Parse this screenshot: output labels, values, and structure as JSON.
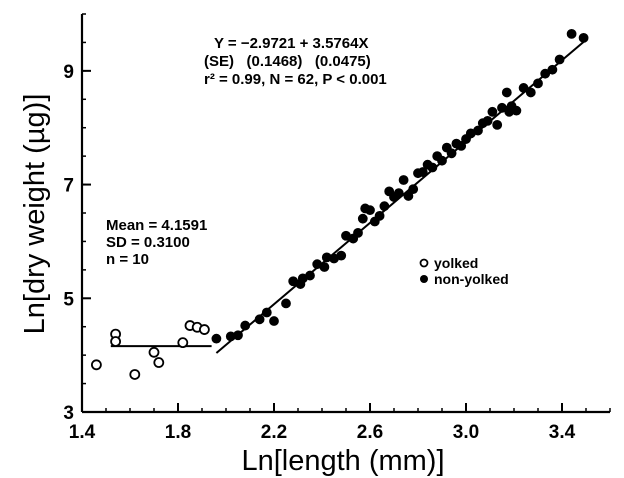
{
  "chart_data": {
    "type": "scatter",
    "xlabel": "Ln[length (mm)]",
    "ylabel": "Ln[dry weight (µg)]",
    "xlim": [
      1.4,
      3.6
    ],
    "ylim": [
      3,
      10
    ],
    "x_ticks": [
      {
        "value": 1.4,
        "label": "1.4"
      },
      {
        "value": 1.8,
        "label": "1.8"
      },
      {
        "value": 2.2,
        "label": "2.2"
      },
      {
        "value": 2.6,
        "label": "2.6"
      },
      {
        "value": 3.0,
        "label": "3.0"
      },
      {
        "value": 3.4,
        "label": "3.4"
      }
    ],
    "y_ticks": [
      {
        "value": 3,
        "label": "3"
      },
      {
        "value": 5,
        "label": "5"
      },
      {
        "value": 7,
        "label": "7"
      },
      {
        "value": 9,
        "label": "9"
      }
    ],
    "grid": false,
    "legend": {
      "placement": "center-right",
      "entries": [
        {
          "label": "yolked",
          "marker": "open-circle"
        },
        {
          "label": "non-yolked",
          "marker": "filled-circle"
        }
      ]
    },
    "annotations": {
      "regression": [
        "Y = −2.9721 + 3.5764X",
        "(SE)   (0.1468)   (0.0475)",
        "r² = 0.99, N = 62, P < 0.001"
      ],
      "summary": [
        "Mean = 4.1591",
        "SD = 0.3100",
        "n = 10"
      ]
    },
    "fit_lines": [
      {
        "name": "regression",
        "intercept": -2.9721,
        "slope": 3.5764,
        "x_range": [
          1.96,
          3.5
        ]
      },
      {
        "name": "mean",
        "y": 4.1591,
        "x_range": [
          1.52,
          1.94
        ]
      }
    ],
    "series": [
      {
        "name": "yolked",
        "marker": "open-circle",
        "points": [
          [
            1.46,
            3.83
          ],
          [
            1.54,
            4.37
          ],
          [
            1.54,
            4.24
          ],
          [
            1.62,
            3.66
          ],
          [
            1.7,
            4.05
          ],
          [
            1.72,
            3.87
          ],
          [
            1.82,
            4.22
          ],
          [
            1.85,
            4.52
          ],
          [
            1.88,
            4.49
          ],
          [
            1.91,
            4.45
          ]
        ]
      },
      {
        "name": "non-yolked",
        "marker": "filled-circle",
        "points": [
          [
            1.96,
            4.29
          ],
          [
            2.02,
            4.33
          ],
          [
            2.05,
            4.35
          ],
          [
            2.08,
            4.52
          ],
          [
            2.14,
            4.63
          ],
          [
            2.17,
            4.75
          ],
          [
            2.2,
            4.6
          ],
          [
            2.25,
            4.91
          ],
          [
            2.28,
            5.3
          ],
          [
            2.32,
            5.35
          ],
          [
            2.35,
            5.4
          ],
          [
            2.38,
            5.6
          ],
          [
            2.42,
            5.72
          ],
          [
            2.45,
            5.7
          ],
          [
            2.48,
            5.75
          ],
          [
            2.5,
            6.1
          ],
          [
            2.53,
            6.05
          ],
          [
            2.55,
            6.15
          ],
          [
            2.58,
            6.58
          ],
          [
            2.6,
            6.55
          ],
          [
            2.62,
            6.35
          ],
          [
            2.64,
            6.45
          ],
          [
            2.66,
            6.62
          ],
          [
            2.68,
            6.88
          ],
          [
            2.7,
            6.78
          ],
          [
            2.72,
            6.85
          ],
          [
            2.74,
            7.08
          ],
          [
            2.76,
            6.8
          ],
          [
            2.78,
            6.92
          ],
          [
            2.8,
            7.2
          ],
          [
            2.82,
            7.22
          ],
          [
            2.84,
            7.35
          ],
          [
            2.86,
            7.3
          ],
          [
            2.88,
            7.5
          ],
          [
            2.9,
            7.42
          ],
          [
            2.92,
            7.65
          ],
          [
            2.94,
            7.55
          ],
          [
            2.96,
            7.72
          ],
          [
            2.98,
            7.68
          ],
          [
            3.0,
            7.8
          ],
          [
            3.02,
            7.9
          ],
          [
            3.05,
            7.95
          ],
          [
            3.07,
            8.08
          ],
          [
            3.09,
            8.12
          ],
          [
            3.11,
            8.28
          ],
          [
            3.13,
            8.05
          ],
          [
            3.15,
            8.35
          ],
          [
            3.17,
            8.62
          ],
          [
            3.19,
            8.38
          ],
          [
            3.21,
            8.3
          ],
          [
            3.24,
            8.7
          ],
          [
            3.27,
            8.62
          ],
          [
            3.3,
            8.78
          ],
          [
            3.33,
            8.95
          ],
          [
            3.36,
            9.02
          ],
          [
            3.39,
            9.2
          ],
          [
            3.44,
            9.65
          ],
          [
            3.49,
            9.58
          ],
          [
            3.18,
            8.28
          ],
          [
            2.57,
            6.4
          ],
          [
            2.41,
            5.55
          ],
          [
            2.31,
            5.25
          ]
        ]
      }
    ]
  }
}
